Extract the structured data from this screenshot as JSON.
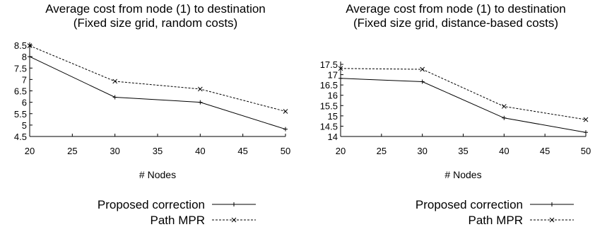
{
  "chart_data": [
    {
      "type": "line",
      "title": "Average cost from node (1) to destination",
      "subtitle": "(Fixed size grid, random costs)",
      "xlabel": "# Nodes",
      "ylabel": "",
      "x": [
        20,
        30,
        40,
        50
      ],
      "xlim": [
        20,
        50
      ],
      "ylim": [
        4.5,
        8.5
      ],
      "xticks": [
        "20",
        "25",
        "30",
        "35",
        "40",
        "45",
        "50"
      ],
      "yticks": [
        "4.5",
        "5",
        "5.5",
        "6",
        "6.5",
        "7",
        "7.5",
        "8",
        "8.5"
      ],
      "grid": false,
      "legend_position": "bottom-center",
      "series": [
        {
          "name": "Proposed correction",
          "style": "solid",
          "marker": "plus",
          "values": [
            8.0,
            6.22,
            6.0,
            4.82
          ]
        },
        {
          "name": "Path MPR",
          "style": "dashed",
          "marker": "cross",
          "values": [
            8.48,
            6.92,
            6.58,
            5.6
          ]
        }
      ]
    },
    {
      "type": "line",
      "title": "Average cost from node (1) to destination",
      "subtitle": "(Fixed size grid, distance-based costs)",
      "xlabel": "# Nodes",
      "ylabel": "",
      "x": [
        20,
        30,
        40,
        50
      ],
      "xlim": [
        20,
        50
      ],
      "ylim": [
        14,
        17.5
      ],
      "xticks": [
        "20",
        "25",
        "30",
        "35",
        "40",
        "45",
        "50"
      ],
      "yticks": [
        "14",
        "14.5",
        "15",
        "15.5",
        "16",
        "16.5",
        "17",
        "17.5"
      ],
      "grid": false,
      "legend_position": "bottom-center",
      "series": [
        {
          "name": "Proposed correction",
          "style": "solid",
          "marker": "plus",
          "values": [
            16.82,
            16.66,
            14.9,
            14.2
          ]
        },
        {
          "name": "Path MPR",
          "style": "dashed",
          "marker": "cross",
          "values": [
            17.3,
            17.26,
            15.46,
            14.82
          ]
        }
      ]
    }
  ]
}
